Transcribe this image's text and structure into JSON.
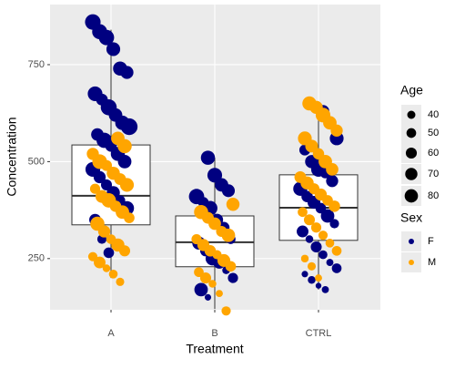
{
  "chart_data": {
    "type": "box",
    "categories": [
      "A",
      "B",
      "CTRL"
    ],
    "x_label": "Treatment",
    "y_label": "Concentration",
    "ylim": [
      118,
      905
    ],
    "yticks": [
      250,
      500,
      750
    ],
    "grid": true,
    "boxes": {
      "low": [
        200,
        120,
        170
      ],
      "q1": [
        337,
        229,
        297
      ],
      "median": [
        412,
        292,
        381
      ],
      "q3": [
        543,
        360,
        466
      ],
      "high": [
        840,
        510,
        640
      ]
    },
    "size_title": "Age",
    "sizelim": [
      18,
      85
    ],
    "size_legend": [
      40,
      50,
      60,
      70,
      80
    ],
    "color_title": "Sex",
    "series": [
      {
        "name": "F",
        "color": "#000080",
        "values": [
          [
            860,
            835,
            820,
            790,
            740,
            730,
            675,
            660,
            640,
            620,
            600,
            590,
            570,
            555,
            540,
            520,
            500,
            480,
            460,
            440,
            420,
            400,
            380,
            350,
            300,
            265
          ],
          [
            510,
            465,
            440,
            425,
            410,
            395,
            380,
            350,
            330,
            300,
            290,
            270,
            250,
            240,
            220,
            200,
            170,
            150
          ],
          [
            630,
            600,
            560,
            530,
            500,
            480,
            470,
            450,
            430,
            410,
            395,
            380,
            360,
            340,
            320,
            300,
            280,
            260,
            240,
            225,
            210,
            195,
            180,
            170
          ]
        ],
        "sizes": [
          [
            72,
            68,
            70,
            60,
            62,
            55,
            66,
            48,
            75,
            58,
            64,
            80,
            52,
            70,
            46,
            62,
            58,
            66,
            50,
            44,
            56,
            40,
            62,
            48,
            36,
            42
          ],
          [
            62,
            66,
            58,
            54,
            70,
            42,
            64,
            50,
            46,
            38,
            56,
            44,
            60,
            52,
            30,
            40,
            58,
            26
          ],
          [
            52,
            48,
            60,
            44,
            56,
            66,
            40,
            50,
            62,
            46,
            54,
            42,
            58,
            36,
            48,
            30,
            44,
            34,
            28,
            38,
            26,
            30,
            24,
            28
          ]
        ]
      },
      {
        "name": "M",
        "color": "#ffa500",
        "values": [
          [
            560,
            540,
            520,
            500,
            490,
            470,
            455,
            440,
            430,
            410,
            400,
            385,
            370,
            355,
            340,
            320,
            300,
            285,
            270,
            255,
            240,
            225,
            210,
            190
          ],
          [
            390,
            370,
            355,
            340,
            320,
            310,
            300,
            285,
            270,
            260,
            245,
            230,
            215,
            200,
            185,
            160,
            115
          ],
          [
            650,
            640,
            620,
            600,
            580,
            560,
            540,
            520,
            500,
            480,
            460,
            445,
            430,
            415,
            400,
            385,
            370,
            350,
            330,
            310,
            290,
            270,
            250,
            230,
            200
          ]
        ],
        "sizes": [
          [
            58,
            62,
            50,
            66,
            44,
            56,
            48,
            60,
            40,
            54,
            64,
            46,
            58,
            42,
            62,
            50,
            38,
            56,
            44,
            36,
            48,
            30,
            34,
            32
          ],
          [
            56,
            62,
            48,
            52,
            44,
            58,
            40,
            50,
            46,
            36,
            54,
            42,
            38,
            44,
            30,
            28,
            36
          ],
          [
            62,
            56,
            66,
            58,
            50,
            60,
            54,
            46,
            58,
            52,
            48,
            56,
            44,
            50,
            42,
            46,
            38,
            44,
            40,
            36,
            34,
            38,
            30,
            32,
            28
          ]
        ]
      }
    ]
  }
}
